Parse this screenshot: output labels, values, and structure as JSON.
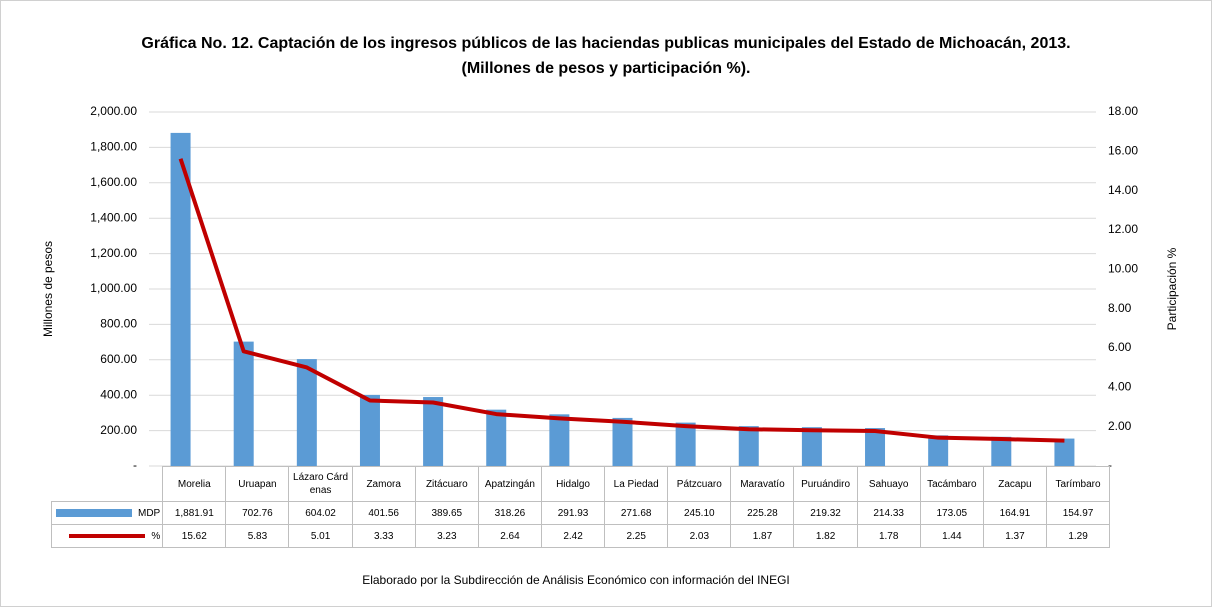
{
  "chart_data": {
    "type": "bar-line",
    "title": "Gráfica No. 12. Captación de los ingresos públicos de las haciendas publicas municipales  del Estado de Michoacán, 2013. (Millones de pesos y participación %).",
    "ylabel": "Millones de pesos",
    "y2label": "Participación %",
    "footer": "Elaborado por la Subdirección de Análisis Económico con información del INEGI",
    "categories": [
      "Morelia",
      "Uruapan",
      "Lázaro Cárdenas",
      "Zamora",
      "Zitácuaro",
      "Apatzingán",
      "Hidalgo",
      "La Piedad",
      "Pátzcuaro",
      "Maravatío",
      "Puruándiro",
      "Sahuayo",
      "Tacámbaro",
      "Zacapu",
      "Tarímbaro"
    ],
    "series": [
      {
        "name": "MDP",
        "type": "bar",
        "color": "#5b9bd5",
        "axis": "y",
        "values": [
          1881.91,
          702.76,
          604.02,
          401.56,
          389.65,
          318.26,
          291.93,
          271.68,
          245.1,
          225.28,
          219.32,
          214.33,
          173.05,
          164.91,
          154.97
        ],
        "value_labels": [
          "1,881.91",
          "702.76",
          "604.02",
          "401.56",
          "389.65",
          "318.26",
          "291.93",
          "271.68",
          "245.10",
          "225.28",
          "219.32",
          "214.33",
          "173.05",
          "164.91",
          "154.97"
        ]
      },
      {
        "name": "%",
        "type": "line",
        "color": "#c00000",
        "axis": "y2",
        "values": [
          15.62,
          5.83,
          5.01,
          3.33,
          3.23,
          2.64,
          2.42,
          2.25,
          2.03,
          1.87,
          1.82,
          1.78,
          1.44,
          1.37,
          1.29
        ]
      }
    ],
    "ylim": [
      0,
      2000
    ],
    "yticks": [
      {
        "value": 0,
        "label": "-"
      },
      {
        "value": 200,
        "label": "200.00"
      },
      {
        "value": 400,
        "label": "400.00"
      },
      {
        "value": 600,
        "label": "600.00"
      },
      {
        "value": 800,
        "label": "800.00"
      },
      {
        "value": 1000,
        "label": "1,000.00"
      },
      {
        "value": 1200,
        "label": "1,200.00"
      },
      {
        "value": 1400,
        "label": "1,400.00"
      },
      {
        "value": 1600,
        "label": "1,600.00"
      },
      {
        "value": 1800,
        "label": "1,800.00"
      },
      {
        "value": 2000,
        "label": "2,000.00"
      }
    ],
    "y2lim": [
      0,
      18
    ],
    "y2ticks": [
      {
        "value": 0,
        "label": "-"
      },
      {
        "value": 2,
        "label": "2.00"
      },
      {
        "value": 4,
        "label": "4.00"
      },
      {
        "value": 6,
        "label": "6.00"
      },
      {
        "value": 8,
        "label": "8.00"
      },
      {
        "value": 10,
        "label": "10.00"
      },
      {
        "value": 12,
        "label": "12.00"
      },
      {
        "value": 14,
        "label": "14.00"
      },
      {
        "value": 16,
        "label": "16.00"
      },
      {
        "value": 18,
        "label": "18.00"
      }
    ],
    "grid": true
  }
}
